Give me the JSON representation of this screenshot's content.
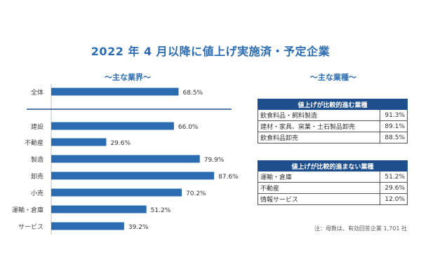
{
  "title": "2022 年 4 月以降に値上げ実施済・予定企業",
  "left_heading": "〜主な業界〜",
  "right_heading": "〜主な業種〜",
  "chart_data": {
    "type": "bar",
    "orientation": "horizontal",
    "categories": [
      "全体",
      "建設",
      "不動産",
      "製造",
      "卸売",
      "小売",
      "運輸・倉庫",
      "サービス"
    ],
    "values": [
      68.5,
      66.0,
      29.6,
      79.9,
      87.6,
      70.2,
      51.2,
      39.2
    ],
    "value_labels": [
      "68.5%",
      "66.0%",
      "29.6%",
      "79.9%",
      "87.6%",
      "70.2%",
      "51.2%",
      "39.2%"
    ],
    "unit": "%",
    "xlim": [
      0,
      100
    ],
    "grid": false,
    "bar_color": "#2b6cb0"
  },
  "tables": [
    {
      "header": "値上げが比較的進む業種",
      "rows": [
        {
          "label": "飲食料品・飼料製造",
          "value": "91.3%"
        },
        {
          "label": "建材・家具、窯業・土石製品卸売",
          "value": "89.1%"
        },
        {
          "label": "飲食料品卸売",
          "value": "88.5%"
        }
      ]
    },
    {
      "header": "値上げが比較的進まない業種",
      "rows": [
        {
          "label": "運輸・倉庫",
          "value": "51.2%"
        },
        {
          "label": "不動産",
          "value": "29.6%"
        },
        {
          "label": "情報サービス",
          "value": "12.0%"
        }
      ]
    }
  ],
  "note": "注：母数は、有効回答企業 1,701 社",
  "colors": {
    "accent": "#2b6cb0",
    "table_header": "#1f4e8c"
  }
}
